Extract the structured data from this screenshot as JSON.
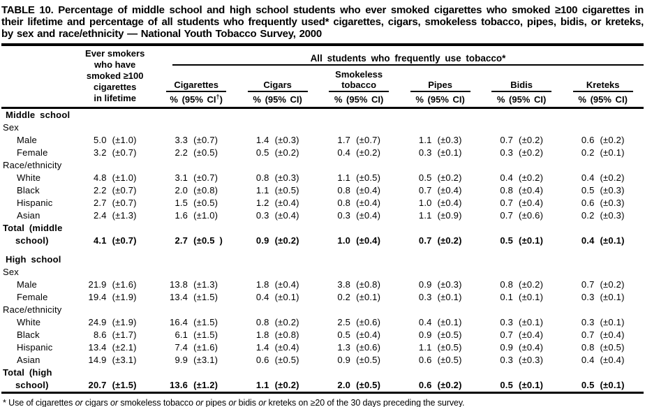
{
  "title": "TABLE 10. Percentage of middle school and high school students who ever smoked cigarettes who smoked ≥100 cigarettes in their lifetime and percentage of all students who frequently used* cigarettes, cigars, smokeless tobacco, pipes, bidis, or kreteks, by sex and race/ethnicity — National Youth Tobacco Survey, 2000",
  "header": {
    "ever_smokers_lines": [
      "Ever smokers",
      "who have",
      "smoked ≥100",
      "cigarettes",
      "in lifetime"
    ],
    "span_header": "All students who frequently use tobacco*",
    "products": [
      {
        "id": "cigarettes",
        "name_lines": [
          "Cigarettes"
        ],
        "ci_pre": "% (95% CI",
        "ci_sup": "†",
        "ci_post": ")"
      },
      {
        "id": "cigars",
        "name_lines": [
          "Cigars"
        ],
        "ci_pre": "% (95% CI",
        "ci_sup": "",
        "ci_post": ")"
      },
      {
        "id": "smokeless-tobacco",
        "name_lines": [
          "Smokeless",
          "tobacco"
        ],
        "ci_pre": "% (95% CI",
        "ci_sup": "",
        "ci_post": ")"
      },
      {
        "id": "pipes",
        "name_lines": [
          "Pipes"
        ],
        "ci_pre": "% (95% CI",
        "ci_sup": "",
        "ci_post": ")"
      },
      {
        "id": "bidis",
        "name_lines": [
          "Bidis"
        ],
        "ci_pre": "% (95% CI",
        "ci_sup": "",
        "ci_post": ")"
      },
      {
        "id": "kreteks",
        "name_lines": [
          "Kreteks"
        ],
        "ci_pre": "% (95% CI",
        "ci_sup": "",
        "ci_post": ")"
      }
    ]
  },
  "rows": [
    {
      "label": "Middle school",
      "style": "section",
      "values": null
    },
    {
      "label": "Sex",
      "style": "group",
      "values": null
    },
    {
      "label": "Male",
      "style": "data",
      "values": [
        [
          "5.0",
          "(±1.0)"
        ],
        [
          "3.3",
          "(±0.7)"
        ],
        [
          "1.4",
          "(±0.3)"
        ],
        [
          "1.7",
          "(±0.7)"
        ],
        [
          "1.1",
          "(±0.3)"
        ],
        [
          "0.7",
          "(±0.2)"
        ],
        [
          "0.6",
          "(±0.2)"
        ]
      ]
    },
    {
      "label": "Female",
      "style": "data",
      "values": [
        [
          "3.2",
          "(±0.7)"
        ],
        [
          "2.2",
          "(±0.5)"
        ],
        [
          "0.5",
          "(±0.2)"
        ],
        [
          "0.4",
          "(±0.2)"
        ],
        [
          "0.3",
          "(±0.1)"
        ],
        [
          "0.3",
          "(±0.2)"
        ],
        [
          "0.2",
          "(±0.1)"
        ]
      ]
    },
    {
      "label": "Race/ethnicity",
      "style": "group",
      "values": null
    },
    {
      "label": "White",
      "style": "data",
      "values": [
        [
          "4.8",
          "(±1.0)"
        ],
        [
          "3.1",
          "(±0.7)"
        ],
        [
          "0.8",
          "(±0.3)"
        ],
        [
          "1.1",
          "(±0.5)"
        ],
        [
          "0.5",
          "(±0.2)"
        ],
        [
          "0.4",
          "(±0.2)"
        ],
        [
          "0.4",
          "(±0.2)"
        ]
      ]
    },
    {
      "label": "Black",
      "style": "data",
      "values": [
        [
          "2.2",
          "(±0.7)"
        ],
        [
          "2.0",
          "(±0.8)"
        ],
        [
          "1.1",
          "(±0.5)"
        ],
        [
          "0.8",
          "(±0.4)"
        ],
        [
          "0.7",
          "(±0.4)"
        ],
        [
          "0.8",
          "(±0.4)"
        ],
        [
          "0.5",
          "(±0.3)"
        ]
      ]
    },
    {
      "label": "Hispanic",
      "style": "data",
      "values": [
        [
          "2.7",
          "(±0.7)"
        ],
        [
          "1.5",
          "(±0.5)"
        ],
        [
          "1.2",
          "(±0.4)"
        ],
        [
          "0.8",
          "(±0.4)"
        ],
        [
          "1.0",
          "(±0.4)"
        ],
        [
          "0.7",
          "(±0.4)"
        ],
        [
          "0.6",
          "(±0.3)"
        ]
      ]
    },
    {
      "label": "Asian",
      "style": "data",
      "values": [
        [
          "2.4",
          "(±1.3)"
        ],
        [
          "1.6",
          "(±1.0)"
        ],
        [
          "0.3",
          "(±0.4)"
        ],
        [
          "0.3",
          "(±0.4)"
        ],
        [
          "1.1",
          "(±0.9)"
        ],
        [
          "0.7",
          "(±0.6)"
        ],
        [
          "0.2",
          "(±0.3)"
        ]
      ]
    },
    {
      "label": "Total (middle",
      "style": "total-head",
      "values": null
    },
    {
      "label": "school)",
      "style": "total-cont",
      "values": [
        [
          "4.1",
          "(±0.7)"
        ],
        [
          "2.7",
          "(±0.5 )"
        ],
        [
          "0.9",
          "(±0.2)"
        ],
        [
          "1.0",
          "(±0.4)"
        ],
        [
          "0.7",
          "(±0.2)"
        ],
        [
          "0.5",
          "(±0.1)"
        ],
        [
          "0.4",
          "(±0.1)"
        ]
      ]
    },
    {
      "label": "High school",
      "style": "section",
      "gap_above": true,
      "values": null
    },
    {
      "label": "Sex",
      "style": "group",
      "values": null
    },
    {
      "label": "Male",
      "style": "data",
      "values": [
        [
          "21.9",
          "(±1.6)"
        ],
        [
          "13.8",
          "(±1.3)"
        ],
        [
          "1.8",
          "(±0.4)"
        ],
        [
          "3.8",
          "(±0.8)"
        ],
        [
          "0.9",
          "(±0.3)"
        ],
        [
          "0.8",
          "(±0.2)"
        ],
        [
          "0.7",
          "(±0.2)"
        ]
      ]
    },
    {
      "label": "Female",
      "style": "data",
      "values": [
        [
          "19.4",
          "(±1.9)"
        ],
        [
          "13.4",
          "(±1.5)"
        ],
        [
          "0.4",
          "(±0.1)"
        ],
        [
          "0.2",
          "(±0.1)"
        ],
        [
          "0.3",
          "(±0.1)"
        ],
        [
          "0.1",
          "(±0.1)"
        ],
        [
          "0.3",
          "(±0.1)"
        ]
      ]
    },
    {
      "label": "Race/ethnicity",
      "style": "group",
      "values": null
    },
    {
      "label": "White",
      "style": "data",
      "values": [
        [
          "24.9",
          "(±1.9)"
        ],
        [
          "16.4",
          "(±1.5)"
        ],
        [
          "0.8",
          "(±0.2)"
        ],
        [
          "2.5",
          "(±0.6)"
        ],
        [
          "0.4",
          "(±0.1)"
        ],
        [
          "0.3",
          "(±0.1)"
        ],
        [
          "0.3",
          "(±0.1)"
        ]
      ]
    },
    {
      "label": "Black",
      "style": "data",
      "values": [
        [
          "8.6",
          "(±1.7)"
        ],
        [
          "6.1",
          "(±1.5)"
        ],
        [
          "1.8",
          "(±0.8)"
        ],
        [
          "0.5",
          "(±0.4)"
        ],
        [
          "0.9",
          "(±0.5)"
        ],
        [
          "0.7",
          "(±0.4)"
        ],
        [
          "0.7",
          "(±0.4)"
        ]
      ]
    },
    {
      "label": "Hispanic",
      "style": "data",
      "values": [
        [
          "13.4",
          "(±2.1)"
        ],
        [
          "7.4",
          "(±1.6)"
        ],
        [
          "1.4",
          "(±0.4)"
        ],
        [
          "1.3",
          "(±0.6)"
        ],
        [
          "1.1",
          "(±0.5)"
        ],
        [
          "0.9",
          "(±0.4)"
        ],
        [
          "0.8",
          "(±0.5)"
        ]
      ]
    },
    {
      "label": "Asian",
      "style": "data",
      "values": [
        [
          "14.9",
          "(±3.1)"
        ],
        [
          "9.9",
          "(±3.1)"
        ],
        [
          "0.6",
          "(±0.5)"
        ],
        [
          "0.9",
          "(±0.5)"
        ],
        [
          "0.6",
          "(±0.5)"
        ],
        [
          "0.3",
          "(±0.3)"
        ],
        [
          "0.4",
          "(±0.4)"
        ]
      ]
    },
    {
      "label": "Total (high",
      "style": "total-head",
      "values": null
    },
    {
      "label": "school)",
      "style": "total-cont",
      "values": [
        [
          "20.7",
          "(±1.5)"
        ],
        [
          "13.6",
          "(±1.2)"
        ],
        [
          "1.1",
          "(±0.2)"
        ],
        [
          "2.0",
          "(±0.5)"
        ],
        [
          "0.6",
          "(±0.2)"
        ],
        [
          "0.5",
          "(±0.1)"
        ],
        [
          "0.5",
          "(±0.1)"
        ]
      ]
    }
  ],
  "footnotes": [
    {
      "segments": [
        {
          "text": "* Use of cigarettes "
        },
        {
          "text": "or",
          "italic": true
        },
        {
          "text": " cigars "
        },
        {
          "text": "or",
          "italic": true
        },
        {
          "text": " smokeless tobacco "
        },
        {
          "text": "or",
          "italic": true
        },
        {
          "text": " pipes "
        },
        {
          "text": "or",
          "italic": true
        },
        {
          "text": " bidis "
        },
        {
          "text": "or",
          "italic": true
        },
        {
          "text": " kreteks on ≥20 of the 30 days preceding the survey."
        }
      ]
    },
    {
      "segments": [
        {
          "text": "†",
          "sup": true
        },
        {
          "text": " Confidence interval."
        }
      ]
    }
  ],
  "colors": {
    "text": "#000000",
    "background": "#ffffff",
    "rule": "#000000"
  }
}
